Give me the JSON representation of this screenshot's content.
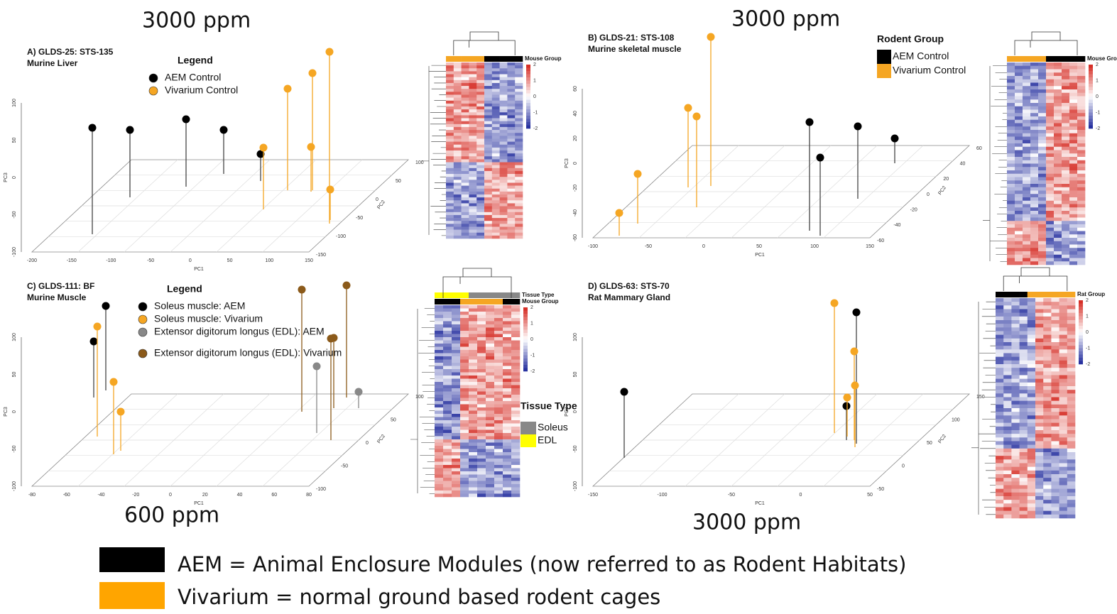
{
  "ppm_labels": [
    "3000 ppm",
    "3000 ppm",
    "600 ppm",
    "3000 ppm"
  ],
  "panels": [
    {
      "title": "A) GLDS-25: STS-135",
      "subtitle": "Murine Liver",
      "legend_title": "Legend",
      "legend": [
        "AEM Control",
        "Vivarium Control"
      ],
      "pc1_ticks": [
        "-200",
        "-150",
        "-100",
        "-50",
        "0",
        "50",
        "100",
        "150"
      ],
      "pc2_ticks": [
        "100",
        "50",
        "0",
        "-50",
        "-100",
        "-150"
      ],
      "pc3_ticks": [
        "100",
        "50",
        "0",
        "-50",
        "-100"
      ],
      "axis_labels": [
        "PC1",
        "PC2",
        "PC3"
      ],
      "heatmap": {
        "labels": [
          "Mouse Group"
        ],
        "scale": [
          "2",
          "1",
          "0",
          "-1",
          "-2"
        ]
      }
    },
    {
      "title": "B) GLDS-21: STS-108",
      "subtitle": "Murine skeletal muscle",
      "legend_title": "Rodent Group",
      "legend": [
        "AEM Control",
        "Vivarium Control"
      ],
      "pc1_ticks": [
        "-100",
        "-50",
        "0",
        "50",
        "100",
        "150"
      ],
      "pc2_ticks": [
        "60",
        "40",
        "20",
        "0",
        "-20",
        "-40",
        "-60"
      ],
      "pc3_ticks": [
        "60",
        "40",
        "20",
        "0",
        "-20",
        "-40",
        "-60"
      ],
      "axis_labels": [
        "PC1",
        "PC2",
        "PC3"
      ],
      "heatmap": {
        "labels": [
          "Mouse Group"
        ],
        "scale": [
          "2",
          "1",
          "0",
          "-1",
          "-2"
        ]
      }
    },
    {
      "title": "C) GLDS-111: BF",
      "subtitle": "Murine Muscle",
      "legend_title": "Legend",
      "legend": [
        "Soleus muscle: AEM",
        "Soleus muscle: Vivarium",
        "Extensor digitorum longus (EDL): AEM",
        "Extensor digitorum longus (EDL): Vivarium"
      ],
      "pc1_ticks": [
        "-80",
        "-60",
        "-40",
        "-20",
        "0",
        "20",
        "40",
        "60",
        "80"
      ],
      "pc2_ticks": [
        "100",
        "50",
        "0",
        "-50",
        "-100"
      ],
      "pc3_ticks": [
        "100",
        "50",
        "0",
        "-50",
        "-100"
      ],
      "axis_labels": [
        "PC1",
        "PC2",
        "PC3"
      ],
      "heatmap": {
        "labels": [
          "Tissue Type",
          "Mouse Group"
        ],
        "scale": [
          "2",
          "1",
          "0",
          "-1",
          "-2"
        ]
      },
      "tissue_legend": {
        "title": "Tissue Type",
        "entries": [
          "Soleus",
          "EDL"
        ]
      }
    },
    {
      "title": "D) GLDS-63: STS-70",
      "subtitle": "Rat Mammary Gland",
      "legend_title": null,
      "legend": [],
      "pc1_ticks": [
        "-150",
        "-100",
        "-50",
        "0",
        "50"
      ],
      "pc2_ticks": [
        "150",
        "100",
        "50",
        "0",
        "-50"
      ],
      "pc3_ticks": [
        "100",
        "50",
        "0",
        "-50",
        "-100"
      ],
      "axis_labels": [
        "PC1",
        "PC2",
        "PC3"
      ],
      "heatmap": {
        "labels": [
          "Rat Group"
        ],
        "scale": [
          "2",
          "1",
          "0",
          "-1",
          "-2"
        ]
      }
    }
  ],
  "footer": [
    "AEM = Animal Enclosure Modules (now referred to as Rodent Habitats)",
    "Vivarium = normal ground based rodent cages"
  ]
}
